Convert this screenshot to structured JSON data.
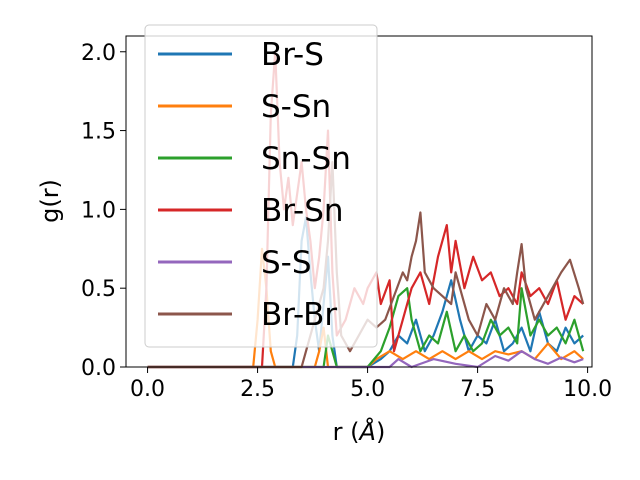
{
  "chart_data": {
    "type": "line",
    "xlabel": "r (",
    "xlabel_unit": "Å",
    "xlabel_close": ")",
    "ylabel": "g(r)",
    "xlim": [
      -0.49,
      10.1
    ],
    "ylim": [
      0.0,
      2.1
    ],
    "x_ticks": [
      0.0,
      2.5,
      5.0,
      7.5,
      10.0
    ],
    "x_tick_labels": [
      "0.0",
      "2.5",
      "5.0",
      "7.5",
      "10.0"
    ],
    "y_ticks": [
      0.0,
      0.5,
      1.0,
      1.5,
      2.0
    ],
    "y_tick_labels": [
      "0.0",
      "0.5",
      "1.0",
      "1.5",
      "2.0"
    ],
    "grid": false,
    "legend_position": "upper-left",
    "series": [
      {
        "name": "Br-S",
        "color": "#1f77b4",
        "points": [
          [
            0,
            0
          ],
          [
            3.3,
            0
          ],
          [
            3.4,
            0.2
          ],
          [
            3.5,
            0.8
          ],
          [
            3.6,
            0.95
          ],
          [
            3.7,
            0.6
          ],
          [
            3.8,
            0.3
          ],
          [
            3.9,
            0.1
          ],
          [
            4.0,
            0.4
          ],
          [
            4.1,
            0.7
          ],
          [
            4.2,
            0.2
          ],
          [
            4.3,
            0
          ],
          [
            5.0,
            0
          ],
          [
            5.3,
            0.05
          ],
          [
            5.5,
            0.1
          ],
          [
            5.7,
            0.2
          ],
          [
            5.9,
            0.15
          ],
          [
            6.1,
            0.3
          ],
          [
            6.3,
            0.1
          ],
          [
            6.5,
            0.2
          ],
          [
            6.7,
            0.35
          ],
          [
            6.9,
            0.55
          ],
          [
            7.1,
            0.3
          ],
          [
            7.3,
            0.1
          ],
          [
            7.5,
            0.2
          ],
          [
            7.7,
            0.15
          ],
          [
            7.9,
            0.3
          ],
          [
            8.1,
            0.1
          ],
          [
            8.3,
            0.15
          ],
          [
            8.5,
            0.25
          ],
          [
            8.7,
            0.1
          ],
          [
            8.9,
            0.35
          ],
          [
            9.1,
            0.15
          ],
          [
            9.3,
            0.1
          ],
          [
            9.5,
            0.25
          ],
          [
            9.7,
            0.15
          ],
          [
            9.9,
            0.2
          ]
        ]
      },
      {
        "name": "S-Sn",
        "color": "#ff7f0e",
        "points": [
          [
            0,
            0
          ],
          [
            2.4,
            0
          ],
          [
            2.5,
            0.3
          ],
          [
            2.6,
            0.75
          ],
          [
            2.7,
            0.5
          ],
          [
            2.8,
            0.1
          ],
          [
            2.9,
            0
          ],
          [
            3.8,
            0
          ],
          [
            3.9,
            0.1
          ],
          [
            4.0,
            0.25
          ],
          [
            4.1,
            0
          ],
          [
            5.0,
            0
          ],
          [
            5.2,
            0.05
          ],
          [
            5.5,
            0.1
          ],
          [
            5.8,
            0.05
          ],
          [
            6.1,
            0.1
          ],
          [
            6.4,
            0.05
          ],
          [
            6.7,
            0.1
          ],
          [
            7.0,
            0.05
          ],
          [
            7.3,
            0.1
          ],
          [
            7.6,
            0.05
          ],
          [
            7.9,
            0.1
          ],
          [
            8.2,
            0.08
          ],
          [
            8.5,
            0.1
          ],
          [
            8.8,
            0.05
          ],
          [
            9.1,
            0.15
          ],
          [
            9.4,
            0.05
          ],
          [
            9.7,
            0.1
          ],
          [
            9.9,
            0.05
          ]
        ]
      },
      {
        "name": "Sn-Sn",
        "color": "#2ca02c",
        "points": [
          [
            0,
            0
          ],
          [
            4.0,
            0
          ],
          [
            4.1,
            0.2
          ],
          [
            4.2,
            0.1
          ],
          [
            4.3,
            0
          ],
          [
            5.0,
            0
          ],
          [
            5.3,
            0.1
          ],
          [
            5.5,
            0.25
          ],
          [
            5.7,
            0.45
          ],
          [
            5.9,
            0.5
          ],
          [
            6.0,
            0.3
          ],
          [
            6.2,
            0.1
          ],
          [
            6.4,
            0.2
          ],
          [
            6.6,
            0.15
          ],
          [
            6.8,
            0.35
          ],
          [
            7.0,
            0.1
          ],
          [
            7.2,
            0.2
          ],
          [
            7.4,
            0.1
          ],
          [
            7.6,
            0.15
          ],
          [
            7.8,
            0.3
          ],
          [
            8.0,
            0.2
          ],
          [
            8.2,
            0.25
          ],
          [
            8.4,
            0.15
          ],
          [
            8.5,
            0.5
          ],
          [
            8.7,
            0.2
          ],
          [
            8.9,
            0.3
          ],
          [
            9.1,
            0.2
          ],
          [
            9.3,
            0.25
          ],
          [
            9.5,
            0.15
          ],
          [
            9.7,
            0.3
          ],
          [
            9.9,
            0.1
          ]
        ]
      },
      {
        "name": "Br-Sn",
        "color": "#d62728",
        "points": [
          [
            0,
            0
          ],
          [
            2.6,
            0
          ],
          [
            2.7,
            0.5
          ],
          [
            2.8,
            1.6
          ],
          [
            2.9,
            2.0
          ],
          [
            3.0,
            1.3
          ],
          [
            3.1,
            1.0
          ],
          [
            3.2,
            1.2
          ],
          [
            3.3,
            0.9
          ],
          [
            3.4,
            1.1
          ],
          [
            3.5,
            1.3
          ],
          [
            3.6,
            1.0
          ],
          [
            3.7,
            0.8
          ],
          [
            3.8,
            0.5
          ],
          [
            3.9,
            0.7
          ],
          [
            4.0,
            1.0
          ],
          [
            4.1,
            1.5
          ],
          [
            4.2,
            0.6
          ],
          [
            4.3,
            0.2
          ],
          [
            4.5,
            0.3
          ],
          [
            4.7,
            0.5
          ],
          [
            4.9,
            0.4
          ],
          [
            5.0,
            0.5
          ],
          [
            5.2,
            0.6
          ],
          [
            5.3,
            0.4
          ],
          [
            5.5,
            0.55
          ],
          [
            5.6,
            0.1
          ],
          [
            5.8,
            0.3
          ],
          [
            6.0,
            0.5
          ],
          [
            6.2,
            0.6
          ],
          [
            6.4,
            0.4
          ],
          [
            6.6,
            0.7
          ],
          [
            6.8,
            0.9
          ],
          [
            6.9,
            0.6
          ],
          [
            7.0,
            0.8
          ],
          [
            7.2,
            0.5
          ],
          [
            7.4,
            0.7
          ],
          [
            7.6,
            0.55
          ],
          [
            7.8,
            0.6
          ],
          [
            8.0,
            0.45
          ],
          [
            8.2,
            0.5
          ],
          [
            8.4,
            0.4
          ],
          [
            8.5,
            0.6
          ],
          [
            8.7,
            0.45
          ],
          [
            8.9,
            0.5
          ],
          [
            9.1,
            0.4
          ],
          [
            9.3,
            0.55
          ],
          [
            9.5,
            0.3
          ],
          [
            9.7,
            0.45
          ],
          [
            9.9,
            0.4
          ]
        ]
      },
      {
        "name": "S-S",
        "color": "#9467bd",
        "points": [
          [
            0,
            0
          ],
          [
            5.5,
            0
          ],
          [
            5.7,
            0.05
          ],
          [
            6.0,
            0
          ],
          [
            6.5,
            0.05
          ],
          [
            7.0,
            0.02
          ],
          [
            7.5,
            0
          ],
          [
            7.9,
            0.07
          ],
          [
            8.2,
            0.04
          ],
          [
            8.5,
            0.1
          ],
          [
            8.8,
            0.05
          ],
          [
            9.1,
            0.02
          ],
          [
            9.4,
            0.06
          ],
          [
            9.7,
            0.03
          ],
          [
            9.9,
            0.05
          ]
        ]
      },
      {
        "name": "Br-Br",
        "color": "#8c564b",
        "points": [
          [
            0,
            0
          ],
          [
            3.5,
            0
          ],
          [
            3.6,
            0.1
          ],
          [
            3.8,
            0.3
          ],
          [
            4.0,
            0.5
          ],
          [
            4.1,
            0.8
          ],
          [
            4.2,
            1.3
          ],
          [
            4.3,
            0.6
          ],
          [
            4.4,
            0.2
          ],
          [
            4.6,
            0.1
          ],
          [
            4.8,
            0.2
          ],
          [
            5.0,
            0.3
          ],
          [
            5.2,
            0.25
          ],
          [
            5.4,
            0.3
          ],
          [
            5.6,
            0.45
          ],
          [
            5.8,
            0.6
          ],
          [
            5.9,
            0.55
          ],
          [
            6.0,
            0.7
          ],
          [
            6.1,
            0.8
          ],
          [
            6.2,
            0.98
          ],
          [
            6.3,
            0.6
          ],
          [
            6.5,
            0.5
          ],
          [
            6.7,
            0.45
          ],
          [
            6.9,
            0.4
          ],
          [
            7.0,
            0.6
          ],
          [
            7.1,
            0.5
          ],
          [
            7.3,
            0.3
          ],
          [
            7.5,
            0.2
          ],
          [
            7.7,
            0.4
          ],
          [
            7.9,
            0.3
          ],
          [
            8.1,
            0.5
          ],
          [
            8.3,
            0.4
          ],
          [
            8.4,
            0.6
          ],
          [
            8.5,
            0.78
          ],
          [
            8.6,
            0.5
          ],
          [
            8.8,
            0.3
          ],
          [
            9.0,
            0.4
          ],
          [
            9.2,
            0.5
          ],
          [
            9.4,
            0.6
          ],
          [
            9.6,
            0.68
          ],
          [
            9.8,
            0.5
          ],
          [
            9.9,
            0.4
          ]
        ]
      }
    ]
  }
}
